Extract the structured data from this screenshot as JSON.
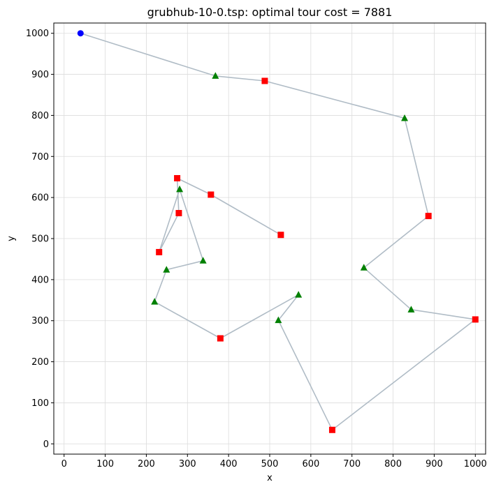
{
  "chart_data": {
    "type": "scatter",
    "title": "grubhub-10-0.tsp: optimal tour cost = 7881",
    "xlabel": "x",
    "ylabel": "y",
    "xlim": [
      -25,
      1025
    ],
    "ylim": [
      -25,
      1025
    ],
    "grid": true,
    "xticks": [
      0,
      100,
      200,
      300,
      400,
      500,
      600,
      700,
      800,
      900,
      1000
    ],
    "yticks": [
      0,
      100,
      200,
      300,
      400,
      500,
      600,
      700,
      800,
      900,
      1000
    ],
    "tour_color": "#b0bcc6",
    "depot": {
      "x": 40,
      "y": 1000,
      "color": "#0000ff",
      "marker": "circle"
    },
    "pickups": {
      "color": "#008000",
      "marker": "triangle",
      "points": [
        [
          368,
          896
        ],
        [
          828,
          793
        ],
        [
          281,
          620
        ],
        [
          338,
          446
        ],
        [
          249,
          424
        ],
        [
          220,
          346
        ],
        [
          570,
          363
        ],
        [
          521,
          301
        ],
        [
          729,
          429
        ],
        [
          844,
          327
        ]
      ]
    },
    "dropoffs": {
      "color": "#ff0000",
      "marker": "square",
      "points": [
        [
          488,
          884
        ],
        [
          886,
          555
        ],
        [
          275,
          647
        ],
        [
          357,
          607
        ],
        [
          527,
          509
        ],
        [
          279,
          562
        ],
        [
          231,
          467
        ],
        [
          380,
          257
        ],
        [
          652,
          34
        ],
        [
          1000,
          303
        ]
      ]
    },
    "tour": [
      [
        40,
        1000
      ],
      [
        368,
        896
      ],
      [
        488,
        884
      ],
      [
        828,
        793
      ],
      [
        886,
        555
      ],
      [
        729,
        429
      ],
      [
        844,
        327
      ],
      [
        1000,
        303
      ],
      [
        652,
        34
      ],
      [
        521,
        301
      ],
      [
        570,
        363
      ],
      [
        380,
        257
      ],
      [
        220,
        346
      ],
      [
        249,
        424
      ],
      [
        338,
        446
      ],
      [
        281,
        620
      ],
      [
        231,
        467
      ],
      [
        279,
        562
      ],
      [
        275,
        647
      ],
      [
        357,
        607
      ],
      [
        527,
        509
      ]
    ]
  }
}
